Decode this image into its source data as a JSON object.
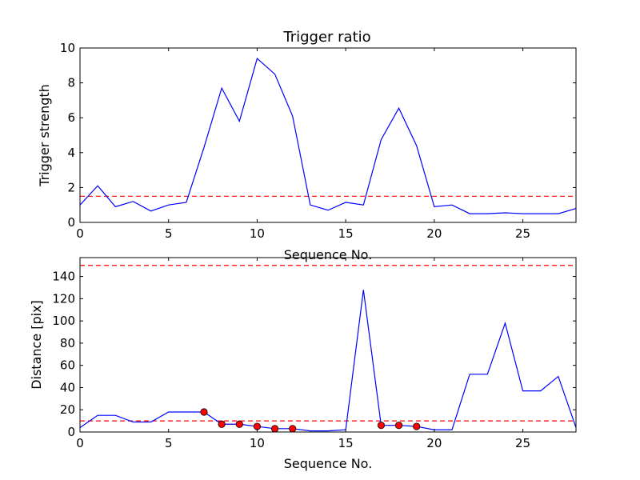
{
  "chart_data": [
    {
      "type": "line",
      "title": "Trigger ratio",
      "xlabel": "Sequence No.",
      "ylabel": "Trigger strength",
      "xlim": [
        0,
        28
      ],
      "ylim": [
        0,
        10
      ],
      "xticks": [
        0,
        5,
        10,
        15,
        20,
        25
      ],
      "yticks": [
        0,
        2,
        4,
        6,
        8,
        10
      ],
      "grid": false,
      "series": [
        {
          "style": "line",
          "color": "#0000ff",
          "x": [
            0,
            1,
            2,
            3,
            4,
            5,
            6,
            7,
            8,
            9,
            10,
            11,
            12,
            13,
            14,
            15,
            16,
            17,
            18,
            19,
            20,
            21,
            22,
            23,
            24,
            25,
            26,
            27,
            28
          ],
          "y": [
            1.0,
            2.1,
            0.9,
            1.2,
            0.65,
            1.0,
            1.15,
            4.3,
            7.7,
            5.8,
            9.4,
            8.5,
            6.1,
            1.0,
            0.7,
            1.15,
            1.0,
            4.75,
            6.55,
            4.4,
            0.9,
            1.0,
            0.5,
            0.5,
            0.55,
            0.5,
            0.5,
            0.5,
            0.8
          ]
        }
      ],
      "reference_lines": [
        {
          "y": 1.5,
          "color": "#ff0000",
          "style": "dashed"
        }
      ]
    },
    {
      "type": "line",
      "title": "",
      "xlabel": "Sequence No.",
      "ylabel": "Distance [pix]",
      "xlim": [
        0,
        28
      ],
      "ylim": [
        0,
        157
      ],
      "xticks": [
        0,
        5,
        10,
        15,
        20,
        25
      ],
      "yticks": [
        0,
        20,
        40,
        60,
        80,
        100,
        120,
        140
      ],
      "grid": false,
      "series": [
        {
          "style": "line",
          "color": "#0000ff",
          "x": [
            0,
            1,
            2,
            3,
            4,
            5,
            6,
            7,
            8,
            9,
            10,
            11,
            12,
            13,
            14,
            15,
            16,
            17,
            18,
            19,
            20,
            21,
            22,
            23,
            24,
            25,
            26,
            27,
            28
          ],
          "y": [
            4,
            15,
            15,
            9,
            9,
            18,
            18,
            18,
            7,
            7,
            5,
            3,
            3,
            1,
            1,
            2,
            128,
            6,
            6,
            5,
            2,
            2,
            52,
            52,
            98,
            37,
            37,
            50,
            4
          ]
        },
        {
          "style": "markers",
          "color": "#ff0000",
          "x": [
            7,
            8,
            9,
            10,
            11,
            12,
            17,
            18,
            19
          ],
          "y": [
            18,
            7,
            7,
            5,
            3,
            3,
            6,
            6,
            5
          ]
        }
      ],
      "reference_lines": [
        {
          "y": 10,
          "color": "#ff0000",
          "style": "dashed"
        },
        {
          "y": 150,
          "color": "#ff0000",
          "style": "dashed"
        }
      ]
    }
  ]
}
